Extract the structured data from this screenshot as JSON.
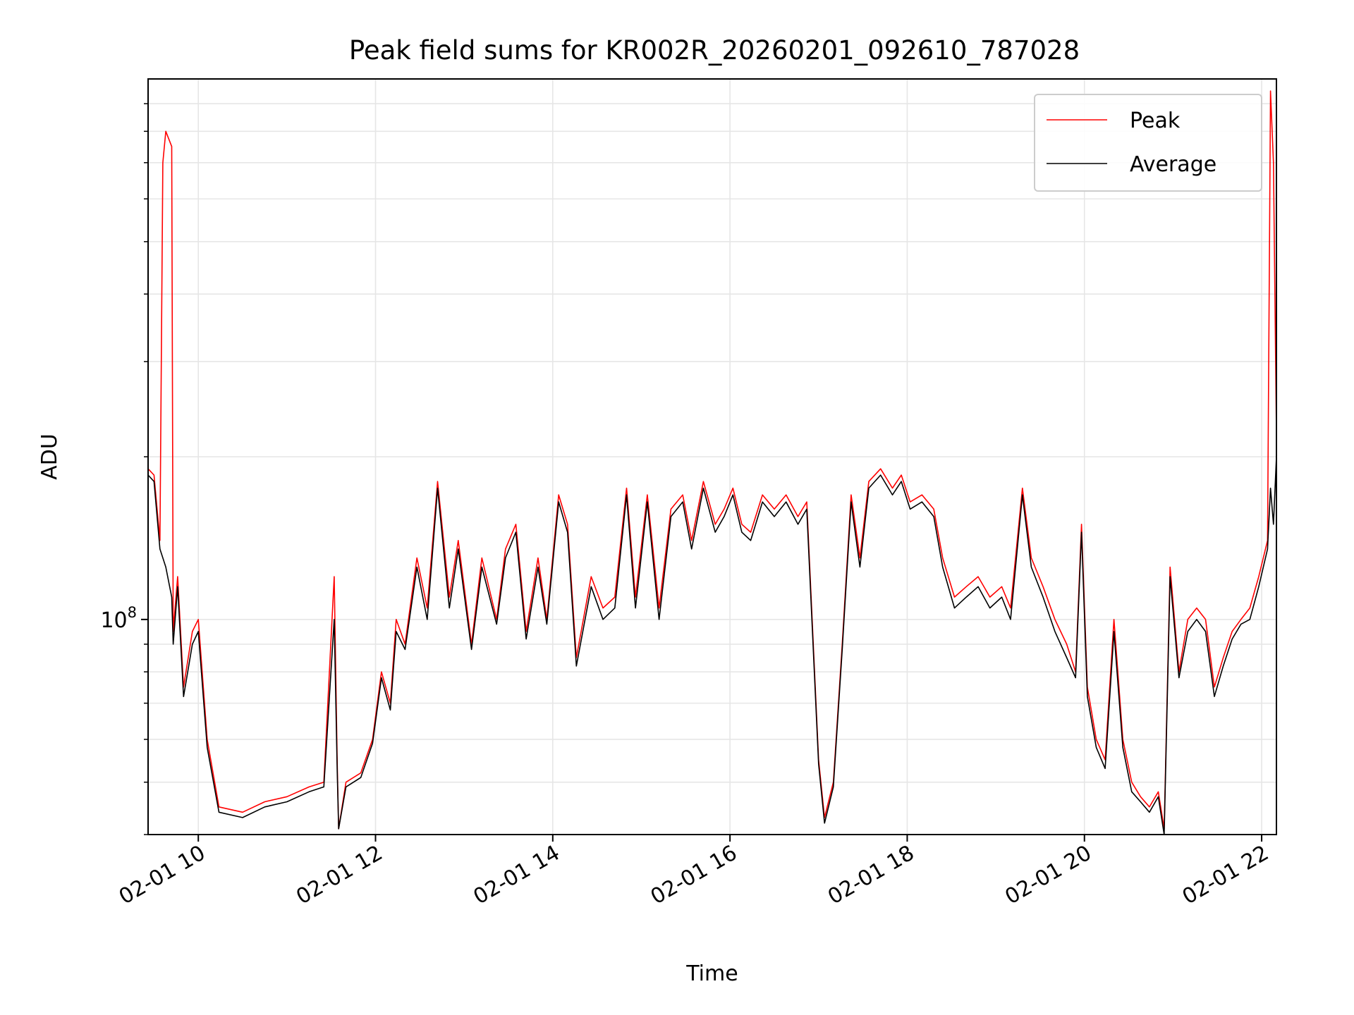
{
  "chart_data": {
    "type": "line",
    "title": "Peak field sums for KR002R_20260201_092610_787028",
    "xlabel": "Time",
    "ylabel": "ADU",
    "x_range": [
      "2026-02-01 09:26",
      "2026-02-01 22:10"
    ],
    "y_scale": "log",
    "y_range": [
      40000000,
      1000000000
    ],
    "xticks": [
      "02-01 10",
      "02-01 12",
      "02-01 14",
      "02-01 16",
      "02-01 18",
      "02-01 20",
      "02-01 22"
    ],
    "yticks": [
      {
        "value": 100000000,
        "base": "10",
        "exp": "8"
      }
    ],
    "grid": true,
    "legend": "top-right",
    "series": [
      {
        "name": "Peak",
        "color": "#ff0000",
        "points": [
          [
            "09:26",
            190000000.0
          ],
          [
            "09:30",
            185000000.0
          ],
          [
            "09:34",
            140000000.0
          ],
          [
            "09:36",
            700000000.0
          ],
          [
            "09:38",
            800000000.0
          ],
          [
            "09:42",
            750000000.0
          ],
          [
            "09:43",
            95000000.0
          ],
          [
            "09:46",
            120000000.0
          ],
          [
            "09:50",
            75000000.0
          ],
          [
            "09:56",
            95000000.0
          ],
          [
            "10:00",
            100000000.0
          ],
          [
            "10:06",
            60000000.0
          ],
          [
            "10:14",
            45000000.0
          ],
          [
            "10:30",
            44000000.0
          ],
          [
            "10:45",
            46000000.0
          ],
          [
            "11:00",
            47000000.0
          ],
          [
            "11:15",
            49000000.0
          ],
          [
            "11:25",
            50000000.0
          ],
          [
            "11:32",
            120000000.0
          ],
          [
            "11:34",
            55000000.0
          ],
          [
            "11:35",
            41000000.0
          ],
          [
            "11:40",
            50000000.0
          ],
          [
            "11:50",
            52000000.0
          ],
          [
            "11:58",
            60000000.0
          ],
          [
            "12:04",
            80000000.0
          ],
          [
            "12:10",
            70000000.0
          ],
          [
            "12:14",
            100000000.0
          ],
          [
            "12:20",
            90000000.0
          ],
          [
            "12:28",
            130000000.0
          ],
          [
            "12:35",
            105000000.0
          ],
          [
            "12:42",
            180000000.0
          ],
          [
            "12:50",
            110000000.0
          ],
          [
            "12:56",
            140000000.0
          ],
          [
            "13:05",
            90000000.0
          ],
          [
            "13:12",
            130000000.0
          ],
          [
            "13:22",
            100000000.0
          ],
          [
            "13:28",
            135000000.0
          ],
          [
            "13:35",
            150000000.0
          ],
          [
            "13:42",
            95000000.0
          ],
          [
            "13:50",
            130000000.0
          ],
          [
            "13:56",
            100000000.0
          ],
          [
            "14:04",
            170000000.0
          ],
          [
            "14:10",
            150000000.0
          ],
          [
            "14:16",
            85000000.0
          ],
          [
            "14:26",
            120000000.0
          ],
          [
            "14:34",
            105000000.0
          ],
          [
            "14:42",
            110000000.0
          ],
          [
            "14:50",
            175000000.0
          ],
          [
            "14:56",
            110000000.0
          ],
          [
            "15:04",
            170000000.0
          ],
          [
            "15:12",
            105000000.0
          ],
          [
            "15:20",
            160000000.0
          ],
          [
            "15:28",
            170000000.0
          ],
          [
            "15:34",
            140000000.0
          ],
          [
            "15:42",
            180000000.0
          ],
          [
            "15:50",
            150000000.0
          ],
          [
            "15:56",
            160000000.0
          ],
          [
            "16:02",
            175000000.0
          ],
          [
            "16:08",
            150000000.0
          ],
          [
            "16:14",
            145000000.0
          ],
          [
            "16:22",
            170000000.0
          ],
          [
            "16:30",
            160000000.0
          ],
          [
            "16:38",
            170000000.0
          ],
          [
            "16:46",
            155000000.0
          ],
          [
            "16:52",
            165000000.0
          ],
          [
            "17:00",
            55000000.0
          ],
          [
            "17:04",
            43000000.0
          ],
          [
            "17:10",
            50000000.0
          ],
          [
            "17:16",
            90000000.0
          ],
          [
            "17:22",
            170000000.0
          ],
          [
            "17:28",
            130000000.0
          ],
          [
            "17:34",
            180000000.0
          ],
          [
            "17:42",
            190000000.0
          ],
          [
            "17:50",
            175000000.0
          ],
          [
            "17:56",
            185000000.0
          ],
          [
            "18:02",
            165000000.0
          ],
          [
            "18:10",
            170000000.0
          ],
          [
            "18:18",
            160000000.0
          ],
          [
            "18:24",
            130000000.0
          ],
          [
            "18:32",
            110000000.0
          ],
          [
            "18:40",
            115000000.0
          ],
          [
            "18:48",
            120000000.0
          ],
          [
            "18:56",
            110000000.0
          ],
          [
            "19:04",
            115000000.0
          ],
          [
            "19:10",
            105000000.0
          ],
          [
            "19:18",
            175000000.0
          ],
          [
            "19:24",
            130000000.0
          ],
          [
            "19:32",
            115000000.0
          ],
          [
            "19:40",
            100000000.0
          ],
          [
            "19:48",
            90000000.0
          ],
          [
            "19:54",
            80000000.0
          ],
          [
            "19:58",
            150000000.0
          ],
          [
            "20:02",
            75000000.0
          ],
          [
            "20:08",
            60000000.0
          ],
          [
            "20:14",
            55000000.0
          ],
          [
            "20:20",
            100000000.0
          ],
          [
            "20:26",
            60000000.0
          ],
          [
            "20:32",
            50000000.0
          ],
          [
            "20:38",
            47000000.0
          ],
          [
            "20:44",
            45000000.0
          ],
          [
            "20:50",
            48000000.0
          ],
          [
            "20:54",
            41000000.0
          ],
          [
            "20:58",
            125000000.0
          ],
          [
            "21:04",
            80000000.0
          ],
          [
            "21:10",
            100000000.0
          ],
          [
            "21:16",
            105000000.0
          ],
          [
            "21:22",
            100000000.0
          ],
          [
            "21:28",
            75000000.0
          ],
          [
            "21:34",
            85000000.0
          ],
          [
            "21:40",
            95000000.0
          ],
          [
            "21:46",
            100000000.0
          ],
          [
            "21:52",
            105000000.0
          ],
          [
            "21:58",
            120000000.0
          ],
          [
            "22:04",
            140000000.0
          ],
          [
            "22:06",
            950000000.0
          ],
          [
            "22:08",
            700000000.0
          ],
          [
            "22:10",
            220000000.0
          ]
        ]
      },
      {
        "name": "Average",
        "color": "#000000",
        "points": [
          [
            "09:26",
            185000000.0
          ],
          [
            "09:30",
            180000000.0
          ],
          [
            "09:34",
            135000000.0
          ],
          [
            "09:36",
            130000000.0
          ],
          [
            "09:38",
            125000000.0
          ],
          [
            "09:42",
            110000000.0
          ],
          [
            "09:43",
            90000000.0
          ],
          [
            "09:46",
            115000000.0
          ],
          [
            "09:50",
            72000000.0
          ],
          [
            "09:56",
            90000000.0
          ],
          [
            "10:00",
            95000000.0
          ],
          [
            "10:06",
            58000000.0
          ],
          [
            "10:14",
            44000000.0
          ],
          [
            "10:30",
            43000000.0
          ],
          [
            "10:45",
            45000000.0
          ],
          [
            "11:00",
            46000000.0
          ],
          [
            "11:15",
            48000000.0
          ],
          [
            "11:25",
            49000000.0
          ],
          [
            "11:32",
            100000000.0
          ],
          [
            "11:34",
            53000000.0
          ],
          [
            "11:35",
            41000000.0
          ],
          [
            "11:40",
            49000000.0
          ],
          [
            "11:50",
            51000000.0
          ],
          [
            "11:58",
            59000000.0
          ],
          [
            "12:04",
            78000000.0
          ],
          [
            "12:10",
            68000000.0
          ],
          [
            "12:14",
            95000000.0
          ],
          [
            "12:20",
            88000000.0
          ],
          [
            "12:28",
            125000000.0
          ],
          [
            "12:35",
            100000000.0
          ],
          [
            "12:42",
            175000000.0
          ],
          [
            "12:50",
            105000000.0
          ],
          [
            "12:56",
            135000000.0
          ],
          [
            "13:05",
            88000000.0
          ],
          [
            "13:12",
            125000000.0
          ],
          [
            "13:22",
            98000000.0
          ],
          [
            "13:28",
            130000000.0
          ],
          [
            "13:35",
            145000000.0
          ],
          [
            "13:42",
            92000000.0
          ],
          [
            "13:50",
            125000000.0
          ],
          [
            "13:56",
            98000000.0
          ],
          [
            "14:04",
            165000000.0
          ],
          [
            "14:10",
            145000000.0
          ],
          [
            "14:16",
            82000000.0
          ],
          [
            "14:26",
            115000000.0
          ],
          [
            "14:34",
            100000000.0
          ],
          [
            "14:42",
            105000000.0
          ],
          [
            "14:50",
            170000000.0
          ],
          [
            "14:56",
            105000000.0
          ],
          [
            "15:04",
            165000000.0
          ],
          [
            "15:12",
            100000000.0
          ],
          [
            "15:20",
            155000000.0
          ],
          [
            "15:28",
            165000000.0
          ],
          [
            "15:34",
            135000000.0
          ],
          [
            "15:42",
            175000000.0
          ],
          [
            "15:50",
            145000000.0
          ],
          [
            "15:56",
            155000000.0
          ],
          [
            "16:02",
            170000000.0
          ],
          [
            "16:08",
            145000000.0
          ],
          [
            "16:14",
            140000000.0
          ],
          [
            "16:22",
            165000000.0
          ],
          [
            "16:30",
            155000000.0
          ],
          [
            "16:38",
            165000000.0
          ],
          [
            "16:46",
            150000000.0
          ],
          [
            "16:52",
            160000000.0
          ],
          [
            "17:00",
            54000000.0
          ],
          [
            "17:04",
            42000000.0
          ],
          [
            "17:10",
            49000000.0
          ],
          [
            "17:16",
            88000000.0
          ],
          [
            "17:22",
            165000000.0
          ],
          [
            "17:28",
            125000000.0
          ],
          [
            "17:34",
            175000000.0
          ],
          [
            "17:42",
            185000000.0
          ],
          [
            "17:50",
            170000000.0
          ],
          [
            "17:56",
            180000000.0
          ],
          [
            "18:02",
            160000000.0
          ],
          [
            "18:10",
            165000000.0
          ],
          [
            "18:18",
            155000000.0
          ],
          [
            "18:24",
            125000000.0
          ],
          [
            "18:32",
            105000000.0
          ],
          [
            "18:40",
            110000000.0
          ],
          [
            "18:48",
            115000000.0
          ],
          [
            "18:56",
            105000000.0
          ],
          [
            "19:04",
            110000000.0
          ],
          [
            "19:10",
            100000000.0
          ],
          [
            "19:18",
            170000000.0
          ],
          [
            "19:24",
            125000000.0
          ],
          [
            "19:32",
            110000000.0
          ],
          [
            "19:40",
            95000000.0
          ],
          [
            "19:48",
            85000000.0
          ],
          [
            "19:54",
            78000000.0
          ],
          [
            "19:58",
            145000000.0
          ],
          [
            "20:02",
            72000000.0
          ],
          [
            "20:08",
            58000000.0
          ],
          [
            "20:14",
            53000000.0
          ],
          [
            "20:20",
            95000000.0
          ],
          [
            "20:26",
            58000000.0
          ],
          [
            "20:32",
            48000000.0
          ],
          [
            "20:38",
            46000000.0
          ],
          [
            "20:44",
            44000000.0
          ],
          [
            "20:50",
            47000000.0
          ],
          [
            "20:54",
            40000000.0
          ],
          [
            "20:58",
            120000000.0
          ],
          [
            "21:04",
            78000000.0
          ],
          [
            "21:10",
            95000000.0
          ],
          [
            "21:16",
            100000000.0
          ],
          [
            "21:22",
            95000000.0
          ],
          [
            "21:28",
            72000000.0
          ],
          [
            "21:34",
            82000000.0
          ],
          [
            "21:40",
            92000000.0
          ],
          [
            "21:46",
            98000000.0
          ],
          [
            "21:52",
            100000000.0
          ],
          [
            "21:58",
            115000000.0
          ],
          [
            "22:04",
            135000000.0
          ],
          [
            "22:06",
            175000000.0
          ],
          [
            "22:08",
            150000000.0
          ],
          [
            "22:10",
            200000000.0
          ]
        ]
      }
    ]
  }
}
